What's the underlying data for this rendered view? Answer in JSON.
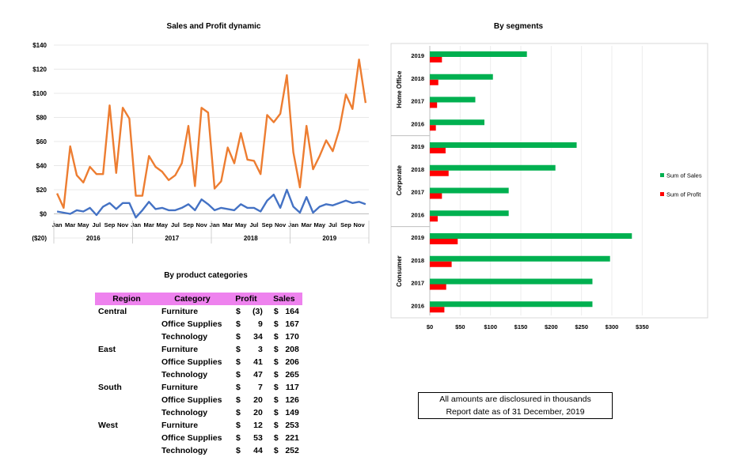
{
  "line_chart": {
    "title": "Sales and Profit dynamic",
    "y_ticks": [
      "$140",
      "$120",
      "$100",
      "$80",
      "$60",
      "$40",
      "$20",
      "$0",
      "($20)"
    ],
    "x_month_labels": [
      "Jan",
      "Mar",
      "May",
      "Jul",
      "Sep",
      "Nov",
      "Jan",
      "Mar",
      "May",
      "Jul",
      "Sep",
      "Nov",
      "Jan",
      "Mar",
      "May",
      "Jul",
      "Sep",
      "Nov",
      "Jan",
      "Mar",
      "May",
      "Jul",
      "Sep",
      "Nov"
    ],
    "x_year_labels": [
      "2016",
      "2017",
      "2018",
      "2019"
    ]
  },
  "bar_chart": {
    "title": "By segments",
    "groups": [
      "Home Office",
      "Corporate",
      "Consumer"
    ],
    "x_ticks": [
      "$0",
      "$50",
      "$100",
      "$150",
      "$200",
      "$250",
      "$300",
      "$350"
    ],
    "legend": [
      "Sum of Sales",
      "Sum of Profit"
    ]
  },
  "table": {
    "title": "By product categories",
    "headers": [
      "Region",
      "Category",
      "Profit",
      "Sales"
    ],
    "rows": [
      {
        "region": "Central",
        "category": "Furniture",
        "p_cur": "$",
        "profit": "(3)",
        "s_cur": "$",
        "sales": "164"
      },
      {
        "region": "",
        "category": "Office Supplies",
        "p_cur": "$",
        "profit": "9",
        "s_cur": "$",
        "sales": "167"
      },
      {
        "region": "",
        "category": "Technology",
        "p_cur": "$",
        "profit": "34",
        "s_cur": "$",
        "sales": "170"
      },
      {
        "region": "East",
        "category": "Furniture",
        "p_cur": "$",
        "profit": "3",
        "s_cur": "$",
        "sales": "208"
      },
      {
        "region": "",
        "category": "Office Supplies",
        "p_cur": "$",
        "profit": "41",
        "s_cur": "$",
        "sales": "206"
      },
      {
        "region": "",
        "category": "Technology",
        "p_cur": "$",
        "profit": "47",
        "s_cur": "$",
        "sales": "265"
      },
      {
        "region": "South",
        "category": "Furniture",
        "p_cur": "$",
        "profit": "7",
        "s_cur": "$",
        "sales": "117"
      },
      {
        "region": "",
        "category": "Office Supplies",
        "p_cur": "$",
        "profit": "20",
        "s_cur": "$",
        "sales": "126"
      },
      {
        "region": "",
        "category": "Technology",
        "p_cur": "$",
        "profit": "20",
        "s_cur": "$",
        "sales": "149"
      },
      {
        "region": "West",
        "category": "Furniture",
        "p_cur": "$",
        "profit": "12",
        "s_cur": "$",
        "sales": "253"
      },
      {
        "region": "",
        "category": "Office Supplies",
        "p_cur": "$",
        "profit": "53",
        "s_cur": "$",
        "sales": "221"
      },
      {
        "region": "",
        "category": "Technology",
        "p_cur": "$",
        "profit": "44",
        "s_cur": "$",
        "sales": "252"
      }
    ]
  },
  "note": {
    "line1": "All amounts are disclosured in thousands",
    "line2": "Report date as of 31 December, 2019"
  },
  "chart_data": [
    {
      "type": "line",
      "title": "Sales and Profit dynamic",
      "ylim": [
        -20,
        140
      ],
      "y_format": "currency",
      "grid": true,
      "x": [
        "2016-01",
        "2016-02",
        "2016-03",
        "2016-04",
        "2016-05",
        "2016-06",
        "2016-07",
        "2016-08",
        "2016-09",
        "2016-10",
        "2016-11",
        "2016-12",
        "2017-01",
        "2017-02",
        "2017-03",
        "2017-04",
        "2017-05",
        "2017-06",
        "2017-07",
        "2017-08",
        "2017-09",
        "2017-10",
        "2017-11",
        "2017-12",
        "2018-01",
        "2018-02",
        "2018-03",
        "2018-04",
        "2018-05",
        "2018-06",
        "2018-07",
        "2018-08",
        "2018-09",
        "2018-10",
        "2018-11",
        "2018-12",
        "2019-01",
        "2019-02",
        "2019-03",
        "2019-04",
        "2019-05",
        "2019-06",
        "2019-07",
        "2019-08",
        "2019-09",
        "2019-10",
        "2019-11",
        "2019-12"
      ],
      "series": [
        {
          "color": "#ed7d31",
          "values": [
            17,
            5,
            56,
            32,
            26,
            39,
            33,
            33,
            90,
            34,
            88,
            79,
            15,
            15,
            48,
            39,
            35,
            28,
            32,
            42,
            73,
            23,
            88,
            84,
            21,
            27,
            55,
            42,
            67,
            45,
            44,
            33,
            82,
            76,
            83,
            115,
            51,
            22,
            73,
            37,
            48,
            61,
            52,
            70,
            99,
            87,
            128,
            92
          ]
        },
        {
          "color": "#4472c4",
          "values": [
            2,
            1,
            0,
            3,
            2,
            5,
            -1,
            6,
            9,
            4,
            9,
            9,
            -3,
            3,
            10,
            4,
            5,
            3,
            3,
            5,
            8,
            3,
            12,
            8,
            3,
            5,
            4,
            3,
            8,
            5,
            5,
            2,
            11,
            16,
            5,
            20,
            6,
            1,
            14,
            1,
            6,
            8,
            7,
            9,
            11,
            9,
            10,
            8
          ]
        }
      ]
    },
    {
      "type": "bar",
      "orientation": "horizontal",
      "title": "By segments",
      "categories": [
        "Home Office 2019",
        "Home Office 2018",
        "Home Office 2017",
        "Home Office 2016",
        "Corporate 2019",
        "Corporate 2018",
        "Corporate 2017",
        "Corporate 2016",
        "Consumer 2019",
        "Consumer 2018",
        "Consumer 2017",
        "Consumer 2016"
      ],
      "category_labels": [
        "2019",
        "2018",
        "2017",
        "2016",
        "2019",
        "2018",
        "2017",
        "2016",
        "2019",
        "2018",
        "2017",
        "2016"
      ],
      "xlim": [
        0,
        350
      ],
      "legend": "right",
      "series": [
        {
          "name": "Sum of Sales",
          "color": "#00b050",
          "values": [
            160,
            104,
            75,
            90,
            242,
            207,
            130,
            130,
            333,
            297,
            268,
            268
          ]
        },
        {
          "name": "Sum of Profit",
          "color": "#ff0000",
          "values": [
            20,
            14,
            12,
            10,
            26,
            31,
            20,
            13,
            46,
            36,
            27,
            24
          ]
        }
      ]
    }
  ]
}
